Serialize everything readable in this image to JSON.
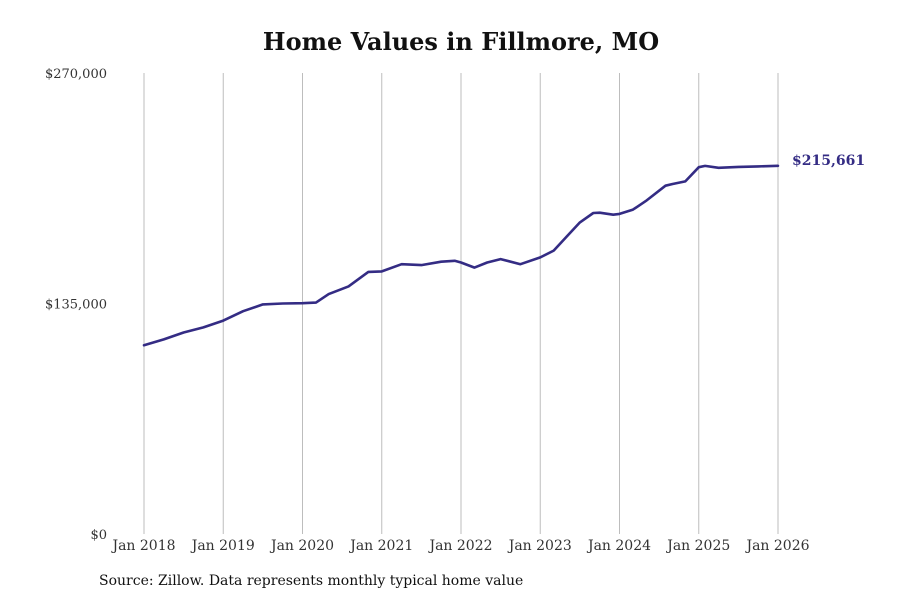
{
  "chart_data": {
    "type": "line",
    "title": "Home Values in Fillmore, MO",
    "source": "Source: Zillow. Data represents monthly typical home value",
    "xlabel": "",
    "ylabel": "",
    "ylim": [
      0,
      270000
    ],
    "yticks": [
      {
        "value": 0,
        "label": "$0"
      },
      {
        "value": 135000,
        "label": "$135,000"
      },
      {
        "value": 270000,
        "label": "$270,000"
      }
    ],
    "xticks": [
      {
        "value": 2018,
        "label": "Jan 2018"
      },
      {
        "value": 2019,
        "label": "Jan 2019"
      },
      {
        "value": 2020,
        "label": "Jan 2020"
      },
      {
        "value": 2021,
        "label": "Jan 2021"
      },
      {
        "value": 2022,
        "label": "Jan 2022"
      },
      {
        "value": 2023,
        "label": "Jan 2023"
      },
      {
        "value": 2024,
        "label": "Jan 2024"
      },
      {
        "value": 2025,
        "label": "Jan 2025"
      },
      {
        "value": 2026,
        "label": "Jan 2026"
      }
    ],
    "xlim": [
      2018,
      2026
    ],
    "grid": "vertical",
    "line_color": "#342C84",
    "end_label": "$215,661",
    "series": [
      {
        "name": "Typical home value",
        "x": [
          2018,
          2018.25,
          2018.5,
          2018.75,
          2019,
          2019.25,
          2019.5,
          2019.75,
          2020,
          2020.17,
          2020.33,
          2020.58,
          2020.83,
          2021,
          2021.25,
          2021.5,
          2021.75,
          2021.92,
          2022,
          2022.17,
          2022.33,
          2022.5,
          2022.75,
          2023,
          2023.17,
          2023.33,
          2023.5,
          2023.67,
          2023.75,
          2023.92,
          2024,
          2024.17,
          2024.33,
          2024.58,
          2024.67,
          2024.83,
          2025,
          2025.08,
          2025.25,
          2025.5,
          2025.75,
          2026
        ],
        "values": [
          110500,
          114000,
          118000,
          121000,
          125000,
          130500,
          134500,
          135000,
          135200,
          135500,
          140500,
          145000,
          153500,
          153800,
          158000,
          157500,
          159500,
          160000,
          159000,
          156000,
          159000,
          161000,
          158000,
          162000,
          166000,
          174000,
          182500,
          188000,
          188200,
          187000,
          187500,
          190000,
          195000,
          204000,
          205000,
          206500,
          214800,
          215600,
          214500,
          215000,
          215300,
          215661
        ]
      }
    ]
  }
}
